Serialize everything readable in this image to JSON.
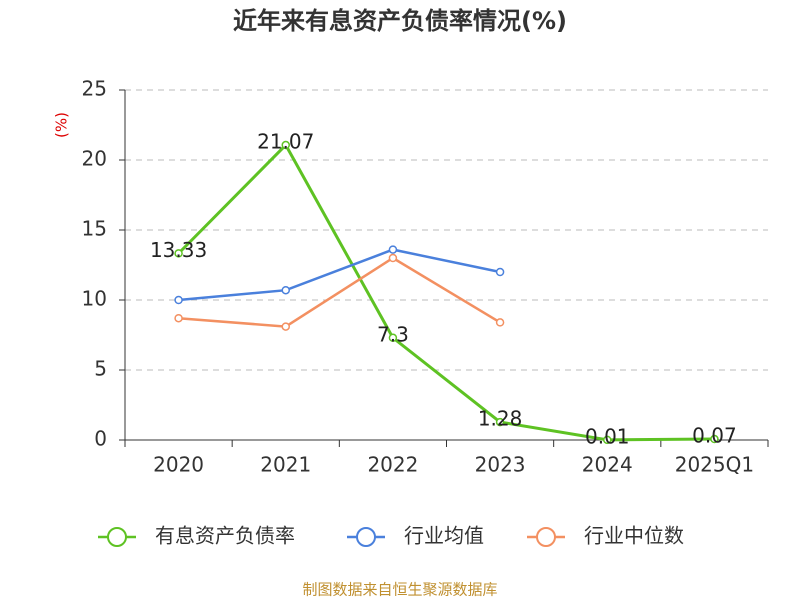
{
  "chart_data": {
    "type": "line",
    "title": "近年来有息资产负债率情况(%)",
    "y_label": "(%)",
    "categories": [
      "2020",
      "2021",
      "2022",
      "2023",
      "2024",
      "2025Q1"
    ],
    "series": [
      {
        "name": "有息资产负债率",
        "color": "#5ec223",
        "values": [
          13.33,
          21.07,
          7.3,
          1.28,
          0.01,
          0.07
        ],
        "labels": true
      },
      {
        "name": "行业均值",
        "color": "#4a80dc",
        "values": [
          10.0,
          10.7,
          13.6,
          12.0,
          null,
          null
        ]
      },
      {
        "name": "行业中位数",
        "color": "#f39061",
        "values": [
          8.7,
          8.1,
          13.0,
          8.4,
          null,
          null
        ]
      }
    ],
    "ylim": [
      0,
      25
    ],
    "yticks": [
      0,
      5,
      10,
      15,
      20,
      25
    ],
    "grid": true,
    "legend": "bottom",
    "source": "制图数据来自恒生聚源数据库"
  }
}
